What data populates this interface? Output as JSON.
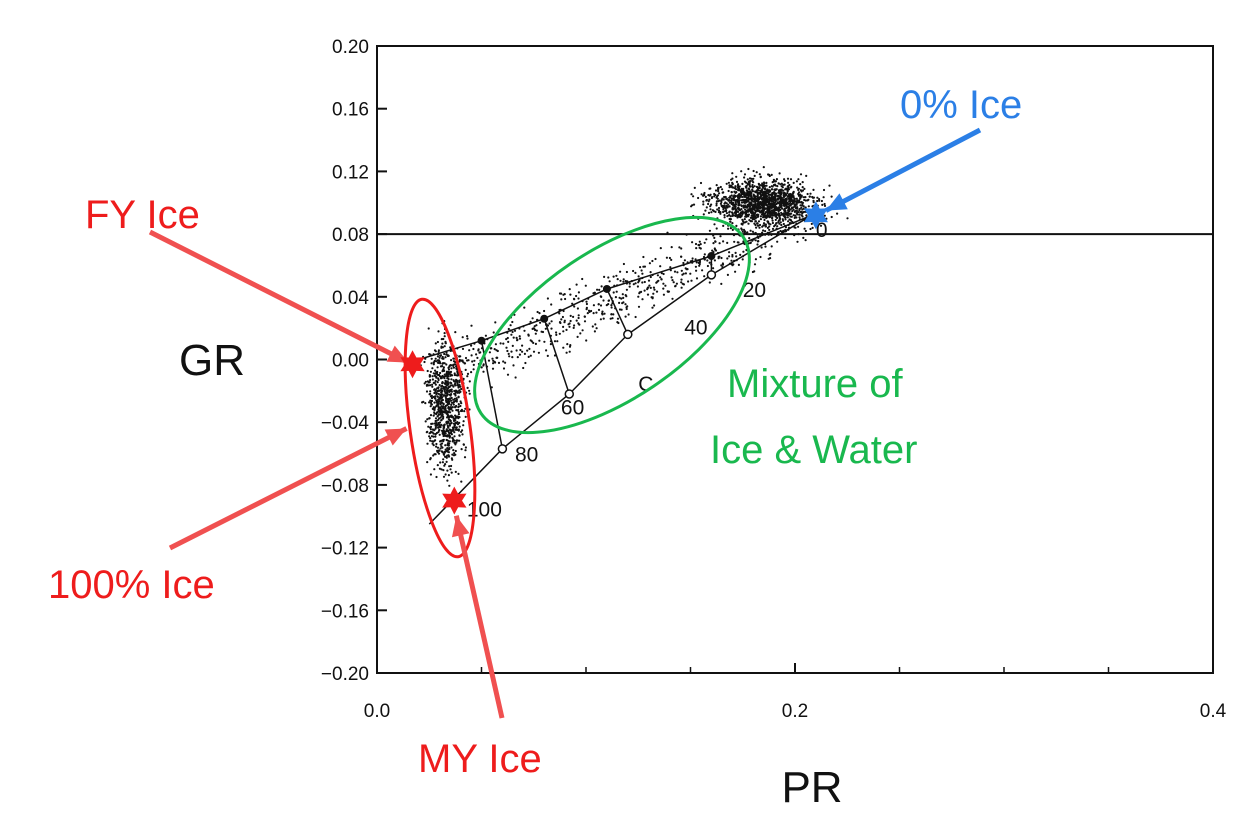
{
  "chart_data": {
    "type": "scatter",
    "xlabel": "PR",
    "ylabel": "GR",
    "xlim": [
      0.0,
      0.4
    ],
    "ylim": [
      -0.2,
      0.2
    ],
    "x_ticks": [
      0.0,
      0.2,
      0.4
    ],
    "x_tick_labels": [
      "0.0",
      "0.2",
      "0.4"
    ],
    "y_ticks": [
      0.2,
      0.16,
      0.12,
      0.08,
      0.04,
      0.0,
      -0.04,
      -0.08,
      -0.12,
      -0.16,
      -0.2
    ],
    "y_tick_labels": [
      "0.20",
      "0.16",
      "0.12",
      "0.08",
      "0.04",
      "0.00",
      "−0.04",
      "−0.08",
      "−0.12",
      "−0.16",
      "−0.20"
    ],
    "reference_line_y": 0.08,
    "clusters": [
      {
        "center": [
          0.185,
          0.1
        ],
        "spread": [
          0.018,
          0.01
        ],
        "points": 1400
      },
      {
        "center": [
          0.033,
          -0.03
        ],
        "spread": [
          0.006,
          0.028
        ],
        "points": 800
      },
      {
        "center": [
          0.095,
          0.035
        ],
        "spread": [
          0.045,
          0.018
        ],
        "points": 700
      }
    ],
    "mixing_curves": {
      "upper": [
        [
          0.02,
          0.0
        ],
        [
          0.05,
          0.012
        ],
        [
          0.08,
          0.026
        ],
        [
          0.11,
          0.045
        ],
        [
          0.16,
          0.066
        ],
        [
          0.208,
          0.092
        ]
      ],
      "lower": [
        [
          0.025,
          -0.105
        ],
        [
          0.06,
          -0.057
        ],
        [
          0.092,
          -0.022
        ],
        [
          0.12,
          0.016
        ],
        [
          0.16,
          0.054
        ],
        [
          0.208,
          0.092
        ]
      ],
      "tie_lines": [
        [
          [
            0.05,
            0.012
          ],
          [
            0.06,
            -0.057
          ]
        ],
        [
          [
            0.08,
            0.026
          ],
          [
            0.092,
            -0.022
          ]
        ],
        [
          [
            0.11,
            0.045
          ],
          [
            0.12,
            0.016
          ]
        ],
        [
          [
            0.16,
            0.066
          ],
          [
            0.16,
            0.054
          ]
        ]
      ]
    },
    "concentration_labels": [
      {
        "text": "0",
        "x": 0.21,
        "y": 0.078
      },
      {
        "text": "20",
        "x": 0.175,
        "y": 0.04
      },
      {
        "text": "40",
        "x": 0.147,
        "y": 0.016
      },
      {
        "text": "60",
        "x": 0.088,
        "y": -0.035
      },
      {
        "text": "80",
        "x": 0.066,
        "y": -0.065
      },
      {
        "text": "100",
        "x": 0.043,
        "y": -0.1
      },
      {
        "text": "C",
        "x": 0.125,
        "y": -0.02
      }
    ],
    "markers": [
      {
        "name": "0% Ice",
        "x": 0.21,
        "y": 0.092,
        "color": "#2b7fe6"
      },
      {
        "name": "FY Ice",
        "x": 0.017,
        "y": -0.003,
        "color": "#ee1c1c"
      },
      {
        "name": "MY Ice",
        "x": 0.037,
        "y": -0.09,
        "color": "#ee1c1c"
      }
    ],
    "annotations": [
      {
        "text": "0% Ice",
        "color": "#2b7fe6",
        "target": [
          0.21,
          0.095
        ]
      },
      {
        "text": "FY Ice",
        "color": "#ee1c1c",
        "target": [
          0.017,
          -0.002
        ]
      },
      {
        "text": "100% Ice",
        "color": "#ee1c1c",
        "target": [
          0.017,
          -0.044
        ]
      },
      {
        "text": "MY Ice",
        "color": "#ee1c1c",
        "target": [
          0.037,
          -0.092
        ]
      },
      {
        "text_lines": [
          "Mixture of",
          "Ice & Water"
        ],
        "color": "#19b84e"
      }
    ],
    "grid": false
  }
}
